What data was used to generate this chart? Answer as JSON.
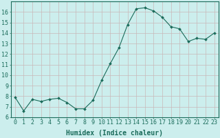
{
  "x": [
    0,
    1,
    2,
    3,
    4,
    5,
    6,
    7,
    8,
    9,
    10,
    11,
    12,
    13,
    14,
    15,
    16,
    17,
    18,
    19,
    20,
    21,
    22,
    23
  ],
  "y": [
    7.9,
    6.6,
    7.7,
    7.5,
    7.7,
    7.8,
    7.4,
    6.8,
    6.8,
    7.6,
    9.5,
    11.1,
    12.6,
    14.8,
    16.3,
    16.4,
    16.1,
    15.5,
    14.6,
    14.4,
    13.2,
    13.5,
    13.4,
    14.0
  ],
  "xlabel": "Humidex (Indice chaleur)",
  "ylim": [
    6,
    17
  ],
  "xlim_min": -0.5,
  "xlim_max": 23.5,
  "yticks": [
    6,
    7,
    8,
    9,
    10,
    11,
    12,
    13,
    14,
    15,
    16
  ],
  "xticks": [
    0,
    1,
    2,
    3,
    4,
    5,
    6,
    7,
    8,
    9,
    10,
    11,
    12,
    13,
    14,
    15,
    16,
    17,
    18,
    19,
    20,
    21,
    22,
    23
  ],
  "line_color": "#1a6b5a",
  "marker": "D",
  "marker_size": 2.0,
  "bg_color": "#cceeed",
  "grid_color": "#c8b8b8",
  "axis_color": "#1a6b5a",
  "tick_color": "#1a6b5a",
  "label_color": "#1a6b5a",
  "font_family": "monospace",
  "xlabel_fontsize": 7,
  "tick_fontsize": 6
}
